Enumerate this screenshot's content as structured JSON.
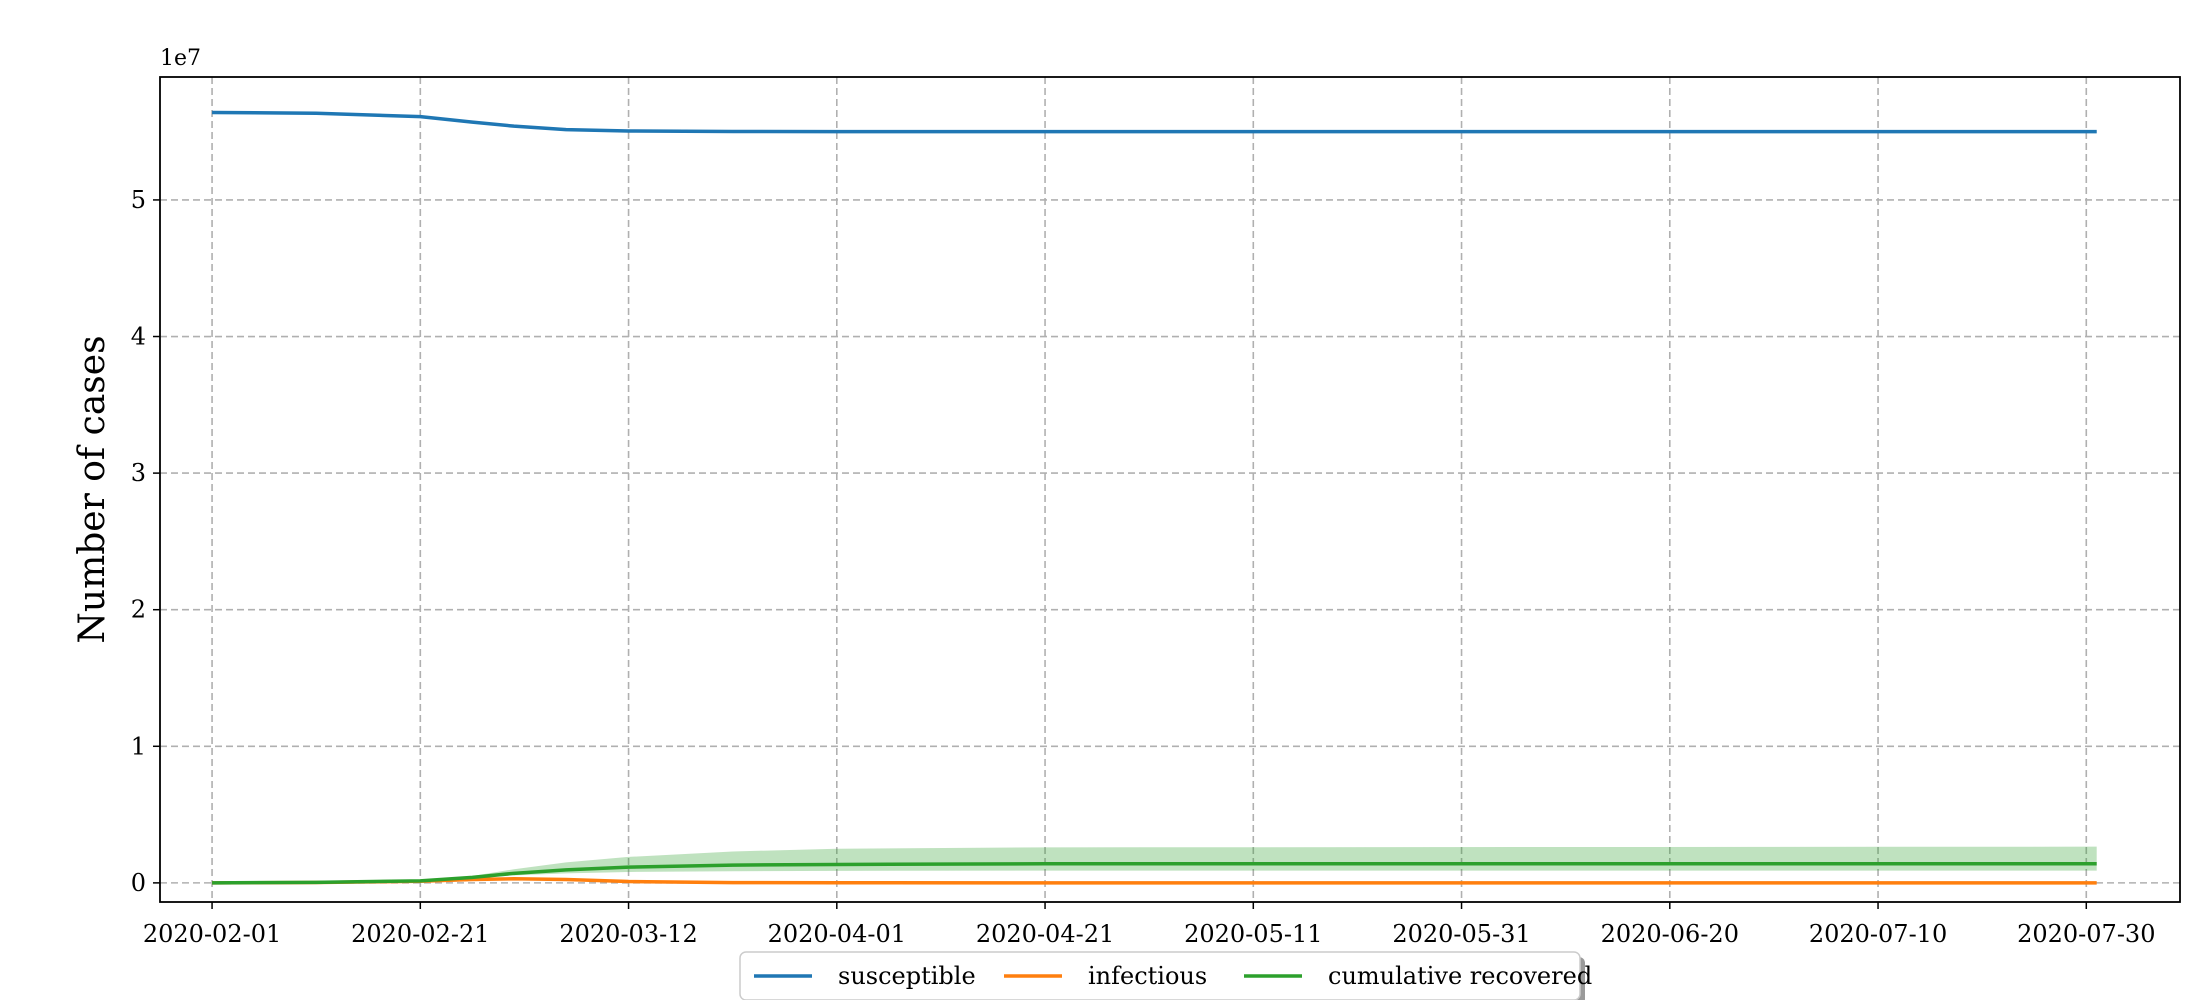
{
  "chart_data": {
    "type": "line",
    "title": "",
    "xlabel": "",
    "ylabel": "Number of cases",
    "y_offset_text": "1e7",
    "x_tick_labels": [
      "2020-02-01",
      "2020-02-21",
      "2020-03-12",
      "2020-04-01",
      "2020-04-21",
      "2020-05-11",
      "2020-05-31",
      "2020-06-20",
      "2020-07-10",
      "2020-07-30"
    ],
    "y_tick_labels": [
      "0",
      "1",
      "2",
      "3",
      "4",
      "5"
    ],
    "x_range": [
      "2020-01-27",
      "2020-08-08"
    ],
    "ylim": [
      -1400000,
      59000000
    ],
    "grid": true,
    "legend_position": "bottom-center",
    "series": [
      {
        "name": "susceptible",
        "color": "#1f77b4",
        "x": [
          "2020-02-01",
          "2020-02-11",
          "2020-02-21",
          "2020-02-26",
          "2020-03-01",
          "2020-03-06",
          "2020-03-12",
          "2020-03-22",
          "2020-04-01",
          "2020-07-31"
        ],
        "y": [
          56400000,
          56350000,
          56100000,
          55700000,
          55400000,
          55150000,
          55050000,
          55010000,
          55000000,
          55000000
        ],
        "band_low": [
          56400000,
          56350000,
          56100000,
          55700000,
          55380000,
          55100000,
          54980000,
          54930000,
          54900000,
          54900000
        ],
        "band_high": [
          56400000,
          56350000,
          56100000,
          55700000,
          55420000,
          55200000,
          55120000,
          55090000,
          55100000,
          55100000
        ]
      },
      {
        "name": "infectious",
        "color": "#ff7f0e",
        "x": [
          "2020-02-01",
          "2020-02-11",
          "2020-02-21",
          "2020-02-26",
          "2020-03-01",
          "2020-03-06",
          "2020-03-12",
          "2020-03-22",
          "2020-04-01",
          "2020-07-31"
        ],
        "y": [
          0,
          30000,
          120000,
          250000,
          300000,
          250000,
          100000,
          20000,
          5000,
          0
        ],
        "band_low": [
          0,
          30000,
          110000,
          220000,
          250000,
          180000,
          60000,
          10000,
          2000,
          0
        ],
        "band_high": [
          0,
          30000,
          130000,
          280000,
          360000,
          320000,
          150000,
          40000,
          10000,
          0
        ]
      },
      {
        "name": "cumulative recovered",
        "color": "#2ca02c",
        "x": [
          "2020-02-01",
          "2020-02-11",
          "2020-02-21",
          "2020-02-26",
          "2020-03-01",
          "2020-03-06",
          "2020-03-12",
          "2020-03-22",
          "2020-04-01",
          "2020-04-21",
          "2020-07-31"
        ],
        "y": [
          0,
          40000,
          150000,
          400000,
          700000,
          950000,
          1150000,
          1300000,
          1350000,
          1400000,
          1400000
        ],
        "band_low": [
          0,
          40000,
          140000,
          350000,
          550000,
          700000,
          800000,
          850000,
          880000,
          900000,
          900000
        ],
        "band_high": [
          0,
          40000,
          160000,
          500000,
          1000000,
          1500000,
          1900000,
          2300000,
          2500000,
          2600000,
          2650000
        ]
      }
    ]
  }
}
